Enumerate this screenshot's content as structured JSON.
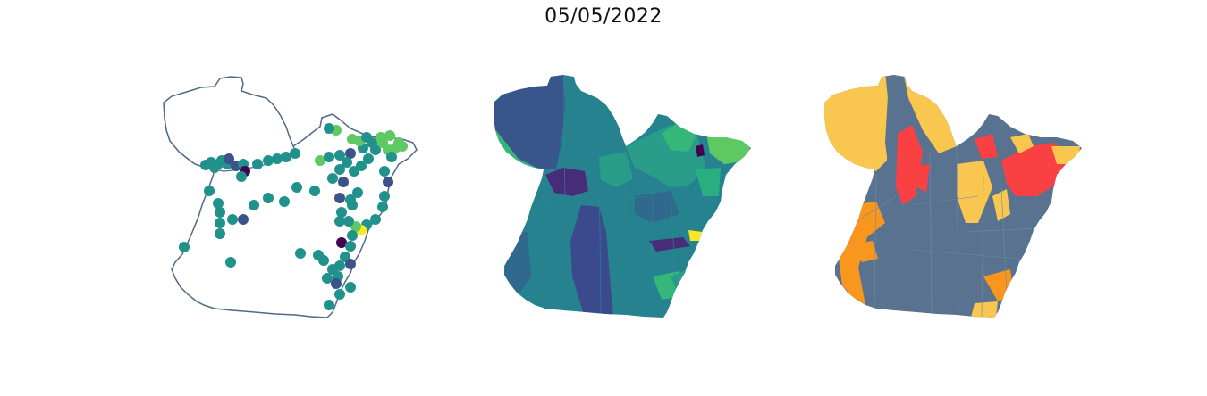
{
  "figure": {
    "title": "05/05/2022"
  },
  "palette": {
    "outline": "#4e6a86",
    "viridis": [
      "#440154",
      "#3b528b",
      "#21918c",
      "#5ec962",
      "#fde725"
    ],
    "choropleth_v_base": "#26828e",
    "choropleth_v_dark": "#39568c",
    "choropleth_v_purple": "#472c7a",
    "choropleth_v_green": "#35b779",
    "choropleth_c_base": "#58728f",
    "choropleth_c_yellow": "#f9c74f",
    "choropleth_c_orange": "#f8961e",
    "choropleth_c_red": "#f94144"
  },
  "panels": [
    {
      "id": "points",
      "kind": "point-map"
    },
    {
      "id": "choropleth-viridis",
      "kind": "choropleth"
    },
    {
      "id": "choropleth-categorical",
      "kind": "choropleth"
    }
  ]
}
